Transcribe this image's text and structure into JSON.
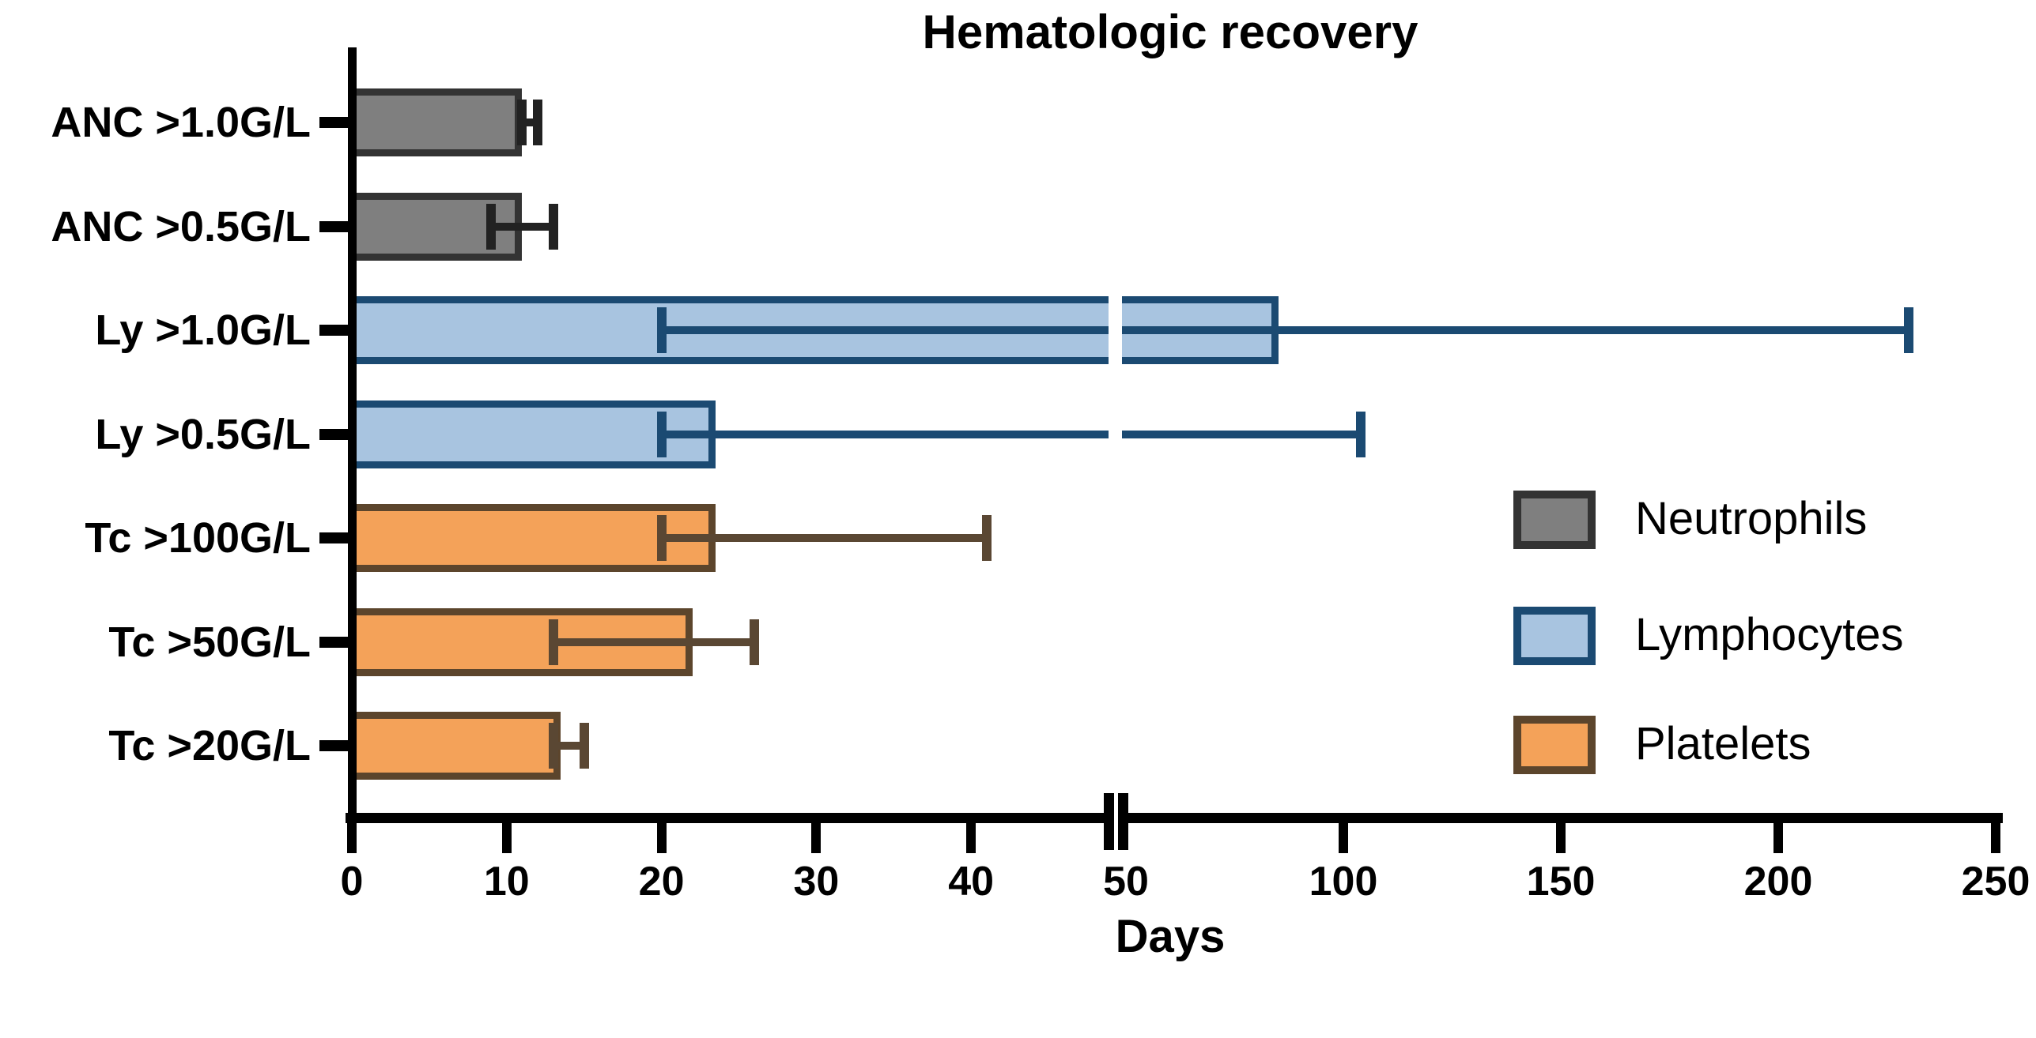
{
  "title": "Hematologic recovery",
  "x_axis": {
    "label": "Days",
    "ticks": [
      0,
      10,
      20,
      30,
      40,
      50,
      100,
      150,
      200,
      250
    ],
    "break_at": 50,
    "range": [
      0,
      250
    ]
  },
  "legend": {
    "items": [
      {
        "label": "Neutrophils",
        "fill": "#7f7f7f",
        "border": "#333333",
        "error": "#222222"
      },
      {
        "label": "Lymphocytes",
        "fill": "#a8c4e0",
        "border": "#1b4a72",
        "error": "#1b4a72"
      },
      {
        "label": "Platelets",
        "fill": "#f4a259",
        "border": "#5c452c",
        "error": "#5a4733"
      }
    ]
  },
  "chart_data": {
    "type": "bar",
    "orientation": "horizontal",
    "title": "Hematologic recovery",
    "xlabel": "Days",
    "x_ticks": [
      0,
      10,
      20,
      30,
      40,
      50,
      100,
      150,
      200,
      250
    ],
    "axis_break_at": 50,
    "grid": false,
    "legend_position": "right-middle",
    "rows": [
      {
        "label": "ANC >1.0G/L",
        "group": "Neutrophils",
        "value": 11,
        "err_lo": 11,
        "err_hi": 12
      },
      {
        "label": "ANC >0.5G/L",
        "group": "Neutrophils",
        "value": 11,
        "err_lo": 9,
        "err_hi": 13
      },
      {
        "label": "Ly >1.0G/L",
        "group": "Lymphocytes",
        "value": 85,
        "err_lo": 20,
        "err_hi": 230
      },
      {
        "label": "Ly >0.5G/L",
        "group": "Lymphocytes",
        "value": 23.5,
        "err_lo": 20,
        "err_hi": 104
      },
      {
        "label": "Tc >100G/L",
        "group": "Platelets",
        "value": 23.5,
        "err_lo": 20,
        "err_hi": 41
      },
      {
        "label": "Tc >50G/L",
        "group": "Platelets",
        "value": 22,
        "err_lo": 13,
        "err_hi": 26
      },
      {
        "label": "Tc >20G/L",
        "group": "Platelets",
        "value": 13.5,
        "err_lo": 13,
        "err_hi": 15
      }
    ]
  }
}
